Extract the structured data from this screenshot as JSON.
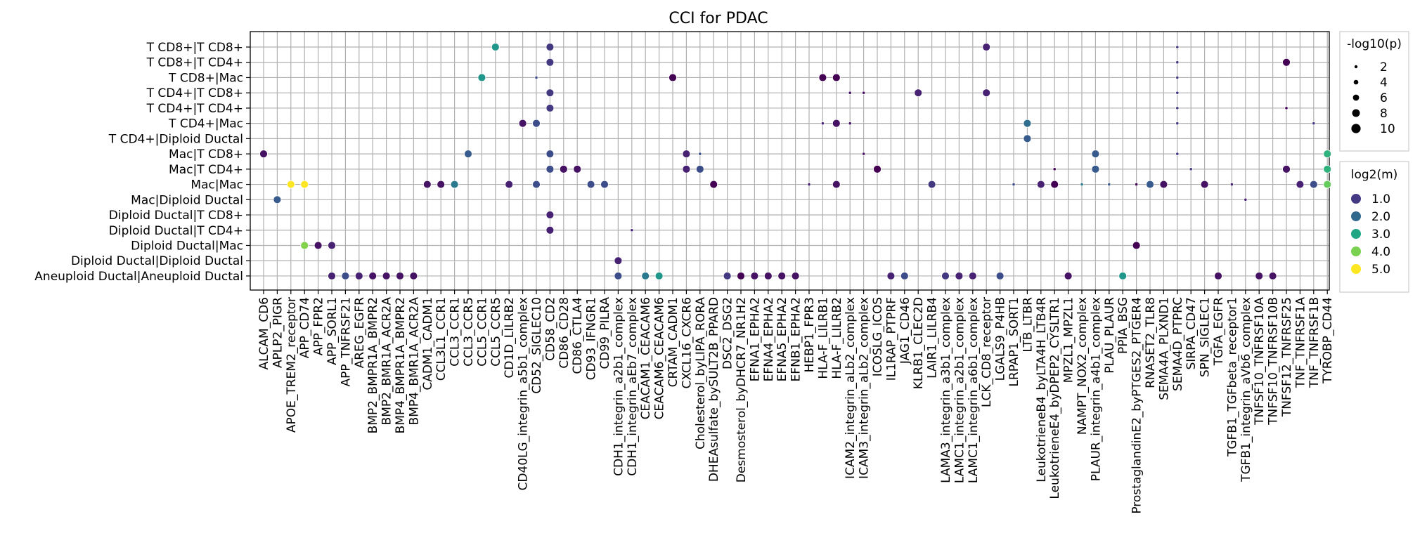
{
  "chart_data": {
    "type": "scatter",
    "title": "CCI for PDAC",
    "xlabel": "",
    "ylabel": "",
    "grid": true,
    "legend_placement": "right",
    "y_categories": [
      "T CD8+|T CD8+",
      "T CD8+|T CD4+",
      "T CD8+|Mac",
      "T CD4+|T CD8+",
      "T CD4+|T CD4+",
      "T CD4+|Mac",
      "T CD4+|Diploid Ductal",
      "Mac|T CD8+",
      "Mac|T CD4+",
      "Mac|Mac",
      "Mac|Diploid Ductal",
      "Diploid Ductal|T CD8+",
      "Diploid Ductal|T CD4+",
      "Diploid Ductal|Mac",
      "Diploid Ductal|Diploid Ductal",
      "Aneuploid Ductal|Aneuploid Ductal"
    ],
    "x_categories": [
      "ALCAM_CD6",
      "APLP2_PIGR",
      "APOE_TREM2_receptor",
      "APP_CD74",
      "APP_FPR2",
      "APP_SORL1",
      "APP_TNFRSF21",
      "AREG_EGFR",
      "BMP2_BMPR1A_BMPR2",
      "BMP2_BMR1A_ACR2A",
      "BMP4_BMPR1A_BMPR2",
      "BMP4_BMR1A_ACR2A",
      "CADM1_CADM1",
      "CCL3L1_CCR1",
      "CCL3_CCR1",
      "CCL3_CCR5",
      "CCL5_CCR1",
      "CCL5_CCR5",
      "CD1D_LILRB2",
      "CD40LG_integrin_a5b1_complex",
      "CD52_SIGLEC10",
      "CD58_CD2",
      "CD86_CD28",
      "CD86_CTLA4",
      "CD93_IFNGR1",
      "CD99_PILRA",
      "CDH1_integrin_a2b1_complex",
      "CDH1_integrin_aEb7_complex",
      "CEACAM1_CEACAM6",
      "CEACAM6_CEACAM6",
      "CRTAM_CADM1",
      "CXCL16_CXCR6",
      "Cholesterol_byLIPA_RORA",
      "DHEAsulfate_bySULT2B_PPARD",
      "DSC2_DSG2",
      "Desmosterol_byDHCR7_NR1H2",
      "EFNA1_EPHA2",
      "EFNA4_EPHA2",
      "EFNA5_EPHA2",
      "EFNB1_EPHA2",
      "HEBP1_FPR3",
      "HLA-F_LILRB1",
      "HLA-F_LILRB2",
      "ICAM2_integrin_aLb2_complex",
      "ICAM3_integrin_aLb2_complex",
      "ICOSLG_ICOS",
      "IL1RAP_PTPRF",
      "JAG1_CD46",
      "KLRB1_CLEC2D",
      "LAIR1_LILRB4",
      "LAMA3_integrin_a3b1_complex",
      "LAMC1_integrin_a2b1_complex",
      "LAMC1_integrin_a6b1_complex",
      "LCK_CD8_receptor",
      "LGALS9_P4HB",
      "LRPAP1_SORT1",
      "LTB_LTBR",
      "LeukotrieneB4_byLTA4H_LTB4R",
      "LeukotrieneE4_byDPEP2_CYSLTR1",
      "MPZL1_MPZL1",
      "NAMPT_NOX2_complex",
      "PLAUR_integrin_a4b1_complex",
      "PLAU_PLAUR",
      "PPIA_BSG",
      "ProstaglandinE2_byPTGES2_PTGER4",
      "RNASET2_TLR8",
      "SEMA4A_PLXND1",
      "SEMA4D_PTPRC",
      "SIRPA_CD47",
      "SPN_SIGLEC1",
      "TGFA_EGFR",
      "TGFB1_TGFbeta_receptor1",
      "TGFB1_integrin_aVb6_complex",
      "TNFSF10_TNFRSF10A",
      "TNFSF10_TNFRSF10B",
      "TNFSF12_TNFRSF25",
      "TNF_TNFRSF1A",
      "TNF_TNFRSF1B",
      "TYROBP_CD44"
    ],
    "points": [
      {
        "x": "ALCAM_CD6",
        "y": "Mac|T CD8+",
        "p": 8,
        "m": 1.0
      },
      {
        "x": "APLP2_PIGR",
        "y": "Mac|Diploid Ductal",
        "p": 8,
        "m": 2.0
      },
      {
        "x": "APOE_TREM2_receptor",
        "y": "Mac|Mac",
        "p": 8,
        "m": 5.0
      },
      {
        "x": "APP_CD74",
        "y": "Mac|Mac",
        "p": 8,
        "m": 5.0
      },
      {
        "x": "APP_CD74",
        "y": "Diploid Ductal|Mac",
        "p": 8,
        "m": 4.2
      },
      {
        "x": "APP_FPR2",
        "y": "Diploid Ductal|Mac",
        "p": 8,
        "m": 1.0
      },
      {
        "x": "APP_SORL1",
        "y": "Diploid Ductal|Mac",
        "p": 8,
        "m": 1.2
      },
      {
        "x": "APP_SORL1",
        "y": "Aneuploid Ductal|Aneuploid Ductal",
        "p": 8,
        "m": 1.2
      },
      {
        "x": "APP_TNFRSF21",
        "y": "Aneuploid Ductal|Aneuploid Ductal",
        "p": 8,
        "m": 1.8
      },
      {
        "x": "AREG_EGFR",
        "y": "Aneuploid Ductal|Aneuploid Ductal",
        "p": 8,
        "m": 1.2
      },
      {
        "x": "BMP2_BMPR1A_BMPR2",
        "y": "Aneuploid Ductal|Aneuploid Ductal",
        "p": 8,
        "m": 1.0
      },
      {
        "x": "BMP2_BMR1A_ACR2A",
        "y": "Aneuploid Ductal|Aneuploid Ductal",
        "p": 8,
        "m": 1.0
      },
      {
        "x": "BMP4_BMPR1A_BMPR2",
        "y": "Aneuploid Ductal|Aneuploid Ductal",
        "p": 8,
        "m": 1.0
      },
      {
        "x": "BMP4_BMR1A_ACR2A",
        "y": "Aneuploid Ductal|Aneuploid Ductal",
        "p": 8,
        "m": 1.0
      },
      {
        "x": "CADM1_CADM1",
        "y": "Mac|Mac",
        "p": 8,
        "m": 1.0
      },
      {
        "x": "CCL3L1_CCR1",
        "y": "Mac|Mac",
        "p": 8,
        "m": 1.0
      },
      {
        "x": "CCL3_CCR1",
        "y": "Mac|Mac",
        "p": 8,
        "m": 2.5
      },
      {
        "x": "CCL3_CCR5",
        "y": "Mac|T CD8+",
        "p": 8,
        "m": 2.0
      },
      {
        "x": "CCL5_CCR1",
        "y": "T CD8+|Mac",
        "p": 8,
        "m": 3.0
      },
      {
        "x": "CCL5_CCR5",
        "y": "T CD8+|T CD8+",
        "p": 8,
        "m": 3.0
      },
      {
        "x": "CD1D_LILRB2",
        "y": "Mac|Mac",
        "p": 8,
        "m": 1.2
      },
      {
        "x": "CD40LG_integrin_a5b1_complex",
        "y": "T CD4+|Mac",
        "p": 8,
        "m": 1.0
      },
      {
        "x": "CD52_SIGLEC10",
        "y": "T CD8+|Mac",
        "p": 2,
        "m": 1.8
      },
      {
        "x": "CD52_SIGLEC10",
        "y": "T CD4+|Mac",
        "p": 8,
        "m": 1.8
      },
      {
        "x": "CD52_SIGLEC10",
        "y": "Mac|Mac",
        "p": 8,
        "m": 1.8
      },
      {
        "x": "CD58_CD2",
        "y": "T CD8+|T CD8+",
        "p": 8,
        "m": 1.5
      },
      {
        "x": "CD58_CD2",
        "y": "T CD8+|T CD4+",
        "p": 8,
        "m": 1.5
      },
      {
        "x": "CD58_CD2",
        "y": "T CD4+|T CD8+",
        "p": 8,
        "m": 1.5
      },
      {
        "x": "CD58_CD2",
        "y": "T CD4+|T CD4+",
        "p": 8,
        "m": 1.5
      },
      {
        "x": "CD58_CD2",
        "y": "Mac|T CD8+",
        "p": 8,
        "m": 1.8
      },
      {
        "x": "CD58_CD2",
        "y": "Mac|T CD4+",
        "p": 8,
        "m": 1.8
      },
      {
        "x": "CD58_CD2",
        "y": "Diploid Ductal|T CD8+",
        "p": 8,
        "m": 1.2
      },
      {
        "x": "CD58_CD2",
        "y": "Diploid Ductal|T CD4+",
        "p": 8,
        "m": 1.2
      },
      {
        "x": "CD86_CD28",
        "y": "Mac|T CD4+",
        "p": 8,
        "m": 1.0
      },
      {
        "x": "CD86_CTLA4",
        "y": "Mac|T CD4+",
        "p": 8,
        "m": 1.0
      },
      {
        "x": "CD93_IFNGR1",
        "y": "Mac|Mac",
        "p": 8,
        "m": 1.8
      },
      {
        "x": "CD99_PILRA",
        "y": "Mac|Mac",
        "p": 8,
        "m": 1.8
      },
      {
        "x": "CDH1_integrin_a2b1_complex",
        "y": "Diploid Ductal|Diploid Ductal",
        "p": 8,
        "m": 1.2
      },
      {
        "x": "CDH1_integrin_a2b1_complex",
        "y": "Aneuploid Ductal|Aneuploid Ductal",
        "p": 8,
        "m": 1.8
      },
      {
        "x": "CDH1_integrin_aEb7_complex",
        "y": "Diploid Ductal|T CD4+",
        "p": 2,
        "m": 1.2
      },
      {
        "x": "CEACAM1_CEACAM6",
        "y": "Aneuploid Ductal|Aneuploid Ductal",
        "p": 8,
        "m": 2.5
      },
      {
        "x": "CEACAM6_CEACAM6",
        "y": "Aneuploid Ductal|Aneuploid Ductal",
        "p": 8,
        "m": 3.0
      },
      {
        "x": "CRTAM_CADM1",
        "y": "T CD8+|Mac",
        "p": 8,
        "m": 0.8
      },
      {
        "x": "CXCL16_CXCR6",
        "y": "Mac|T CD8+",
        "p": 8,
        "m": 1.2
      },
      {
        "x": "CXCL16_CXCR6",
        "y": "Mac|T CD4+",
        "p": 8,
        "m": 1.2
      },
      {
        "x": "Cholesterol_byLIPA_RORA",
        "y": "Mac|T CD8+",
        "p": 2,
        "m": 1.8
      },
      {
        "x": "Cholesterol_byLIPA_RORA",
        "y": "Mac|T CD4+",
        "p": 8,
        "m": 1.8
      },
      {
        "x": "DHEAsulfate_bySULT2B_PPARD",
        "y": "Mac|Mac",
        "p": 8,
        "m": 0.8
      },
      {
        "x": "DSC2_DSG2",
        "y": "Aneuploid Ductal|Aneuploid Ductal",
        "p": 8,
        "m": 1.5
      },
      {
        "x": "Desmosterol_byDHCR7_NR1H2",
        "y": "Aneuploid Ductal|Aneuploid Ductal",
        "p": 8,
        "m": 0.8
      },
      {
        "x": "EFNA1_EPHA2",
        "y": "Aneuploid Ductal|Aneuploid Ductal",
        "p": 8,
        "m": 1.0
      },
      {
        "x": "EFNA4_EPHA2",
        "y": "Aneuploid Ductal|Aneuploid Ductal",
        "p": 8,
        "m": 1.0
      },
      {
        "x": "EFNA5_EPHA2",
        "y": "Aneuploid Ductal|Aneuploid Ductal",
        "p": 8,
        "m": 1.0
      },
      {
        "x": "EFNB1_EPHA2",
        "y": "Aneuploid Ductal|Aneuploid Ductal",
        "p": 8,
        "m": 1.0
      },
      {
        "x": "HEBP1_FPR3",
        "y": "Mac|Mac",
        "p": 2,
        "m": 1.2
      },
      {
        "x": "HLA-F_LILRB1",
        "y": "T CD8+|Mac",
        "p": 8,
        "m": 0.8
      },
      {
        "x": "HLA-F_LILRB1",
        "y": "T CD4+|Mac",
        "p": 2,
        "m": 1.2
      },
      {
        "x": "HLA-F_LILRB2",
        "y": "T CD8+|Mac",
        "p": 8,
        "m": 0.8
      },
      {
        "x": "HLA-F_LILRB2",
        "y": "T CD4+|Mac",
        "p": 8,
        "m": 1.0
      },
      {
        "x": "HLA-F_LILRB2",
        "y": "Mac|Mac",
        "p": 8,
        "m": 1.0
      },
      {
        "x": "ICAM2_integrin_aLb2_complex",
        "y": "T CD4+|T CD8+",
        "p": 2,
        "m": 1.0
      },
      {
        "x": "ICAM2_integrin_aLb2_complex",
        "y": "T CD4+|Mac",
        "p": 2,
        "m": 1.0
      },
      {
        "x": "ICAM3_integrin_aLb2_complex",
        "y": "T CD4+|T CD8+",
        "p": 2,
        "m": 1.0
      },
      {
        "x": "ICAM3_integrin_aLb2_complex",
        "y": "Mac|T CD8+",
        "p": 2,
        "m": 1.0
      },
      {
        "x": "ICOSLG_ICOS",
        "y": "Mac|T CD4+",
        "p": 8,
        "m": 0.8
      },
      {
        "x": "IL1RAP_PTPRF",
        "y": "Aneuploid Ductal|Aneuploid Ductal",
        "p": 8,
        "m": 1.2
      },
      {
        "x": "JAG1_CD46",
        "y": "Aneuploid Ductal|Aneuploid Ductal",
        "p": 8,
        "m": 1.8
      },
      {
        "x": "KLRB1_CLEC2D",
        "y": "T CD4+|T CD8+",
        "p": 8,
        "m": 1.2
      },
      {
        "x": "LAIR1_LILRB4",
        "y": "Mac|Mac",
        "p": 8,
        "m": 1.5
      },
      {
        "x": "LAMA3_integrin_a3b1_complex",
        "y": "Aneuploid Ductal|Aneuploid Ductal",
        "p": 8,
        "m": 1.5
      },
      {
        "x": "LAMC1_integrin_a2b1_complex",
        "y": "Aneuploid Ductal|Aneuploid Ductal",
        "p": 8,
        "m": 1.2
      },
      {
        "x": "LAMC1_integrin_a6b1_complex",
        "y": "Aneuploid Ductal|Aneuploid Ductal",
        "p": 8,
        "m": 1.2
      },
      {
        "x": "LCK_CD8_receptor",
        "y": "T CD8+|T CD8+",
        "p": 8,
        "m": 1.2
      },
      {
        "x": "LCK_CD8_receptor",
        "y": "T CD4+|T CD8+",
        "p": 8,
        "m": 1.2
      },
      {
        "x": "LGALS9_P4HB",
        "y": "Aneuploid Ductal|Aneuploid Ductal",
        "p": 8,
        "m": 1.8
      },
      {
        "x": "LRPAP1_SORT1",
        "y": "Mac|Mac",
        "p": 2,
        "m": 1.8
      },
      {
        "x": "LTB_LTBR",
        "y": "T CD4+|Mac",
        "p": 8,
        "m": 2.3
      },
      {
        "x": "LTB_LTBR",
        "y": "T CD4+|Diploid Ductal",
        "p": 8,
        "m": 2.0
      },
      {
        "x": "LeukotrieneB4_byLTA4H_LTB4R",
        "y": "Mac|Mac",
        "p": 8,
        "m": 1.2
      },
      {
        "x": "LeukotrieneE4_byDPEP2_CYSLTR1",
        "y": "Mac|T CD4+",
        "p": 2,
        "m": 0.8
      },
      {
        "x": "LeukotrieneE4_byDPEP2_CYSLTR1",
        "y": "Mac|Mac",
        "p": 8,
        "m": 0.8
      },
      {
        "x": "MPZL1_MPZL1",
        "y": "Aneuploid Ductal|Aneuploid Ductal",
        "p": 8,
        "m": 1.0
      },
      {
        "x": "NAMPT_NOX2_complex",
        "y": "Mac|Mac",
        "p": 2,
        "m": 2.5
      },
      {
        "x": "PLAUR_integrin_a4b1_complex",
        "y": "Mac|T CD8+",
        "p": 8,
        "m": 2.0
      },
      {
        "x": "PLAUR_integrin_a4b1_complex",
        "y": "Mac|T CD4+",
        "p": 8,
        "m": 2.0
      },
      {
        "x": "PLAU_PLAUR",
        "y": "Mac|Mac",
        "p": 2,
        "m": 2.0
      },
      {
        "x": "PPIA_BSG",
        "y": "Aneuploid Ductal|Aneuploid Ductal",
        "p": 8,
        "m": 3.0
      },
      {
        "x": "ProstaglandinE2_byPTGES2_PTGER4",
        "y": "Mac|Mac",
        "p": 2,
        "m": 0.8
      },
      {
        "x": "ProstaglandinE2_byPTGES2_PTGER4",
        "y": "Diploid Ductal|Mac",
        "p": 8,
        "m": 0.8
      },
      {
        "x": "RNASET2_TLR8",
        "y": "Mac|Mac",
        "p": 8,
        "m": 2.0
      },
      {
        "x": "SEMA4A_PLXND1",
        "y": "Mac|Mac",
        "p": 8,
        "m": 1.0
      },
      {
        "x": "SEMA4D_PTPRC",
        "y": "T CD8+|T CD8+",
        "p": 2,
        "m": 1.5
      },
      {
        "x": "SEMA4D_PTPRC",
        "y": "T CD8+|T CD4+",
        "p": 2,
        "m": 1.5
      },
      {
        "x": "SEMA4D_PTPRC",
        "y": "T CD8+|Mac",
        "p": 2,
        "m": 1.5
      },
      {
        "x": "SEMA4D_PTPRC",
        "y": "T CD4+|T CD8+",
        "p": 2,
        "m": 1.5
      },
      {
        "x": "SEMA4D_PTPRC",
        "y": "T CD4+|T CD4+",
        "p": 2,
        "m": 1.5
      },
      {
        "x": "SEMA4D_PTPRC",
        "y": "T CD4+|Mac",
        "p": 2,
        "m": 1.5
      },
      {
        "x": "SEMA4D_PTPRC",
        "y": "Mac|T CD8+",
        "p": 2,
        "m": 1.5
      },
      {
        "x": "SIRPA_CD47",
        "y": "Mac|T CD4+",
        "p": 2,
        "m": 1.5
      },
      {
        "x": "SPN_SIGLEC1",
        "y": "Mac|Mac",
        "p": 8,
        "m": 1.0
      },
      {
        "x": "TGFA_EGFR",
        "y": "Aneuploid Ductal|Aneuploid Ductal",
        "p": 8,
        "m": 1.0
      },
      {
        "x": "TGFB1_TGFbeta_receptor1",
        "y": "Mac|Mac",
        "p": 2,
        "m": 1.2
      },
      {
        "x": "TGFB1_integrin_aVb6_complex",
        "y": "Mac|Diploid Ductal",
        "p": 2,
        "m": 1.2
      },
      {
        "x": "TNFSF10_TNFRSF10A",
        "y": "Aneuploid Ductal|Aneuploid Ductal",
        "p": 8,
        "m": 1.0
      },
      {
        "x": "TNFSF10_TNFRSF10B",
        "y": "Aneuploid Ductal|Aneuploid Ductal",
        "p": 8,
        "m": 1.0
      },
      {
        "x": "TNFSF12_TNFRSF25",
        "y": "T CD8+|T CD4+",
        "p": 8,
        "m": 0.8
      },
      {
        "x": "TNFSF12_TNFRSF25",
        "y": "T CD4+|T CD4+",
        "p": 2,
        "m": 0.8
      },
      {
        "x": "TNFSF12_TNFRSF25",
        "y": "Mac|T CD4+",
        "p": 8,
        "m": 1.0
      },
      {
        "x": "TNF_TNFRSF1A",
        "y": "Mac|Mac",
        "p": 8,
        "m": 1.2
      },
      {
        "x": "TNF_TNFRSF1B",
        "y": "T CD4+|Mac",
        "p": 2,
        "m": 1.5
      },
      {
        "x": "TNF_TNFRSF1B",
        "y": "Mac|Mac",
        "p": 8,
        "m": 1.8
      },
      {
        "x": "TYROBP_CD44",
        "y": "Mac|T CD8+",
        "p": 8,
        "m": 3.5
      },
      {
        "x": "TYROBP_CD44",
        "y": "Mac|T CD4+",
        "p": 8,
        "m": 3.5
      },
      {
        "x": "TYROBP_CD44",
        "y": "Mac|Mac",
        "p": 8,
        "m": 4.0
      }
    ],
    "size_legend": {
      "title": "-log10(p)",
      "entries": [
        {
          "label": "2",
          "value": 2
        },
        {
          "label": "4",
          "value": 4
        },
        {
          "label": "6",
          "value": 6
        },
        {
          "label": "8",
          "value": 8
        },
        {
          "label": "10",
          "value": 10
        }
      ]
    },
    "color_legend": {
      "title": "log2(m)",
      "colormap": "viridis",
      "range": [
        0.8,
        5.0
      ],
      "entries": [
        {
          "label": "1.0",
          "value": 1.0,
          "color": "#443983"
        },
        {
          "label": "2.0",
          "value": 2.0,
          "color": "#31688e"
        },
        {
          "label": "3.0",
          "value": 3.0,
          "color": "#21a685"
        },
        {
          "label": "4.0",
          "value": 4.0,
          "color": "#7ad151"
        },
        {
          "label": "5.0",
          "value": 5.0,
          "color": "#fde725"
        }
      ]
    }
  }
}
